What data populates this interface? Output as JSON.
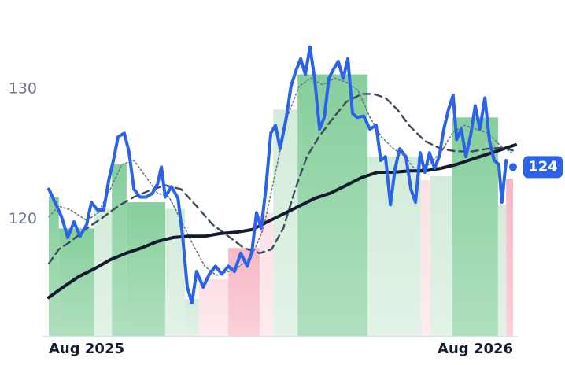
{
  "chart_data": {
    "type": "line",
    "xlim": [
      0,
      12.06
    ],
    "ylim": [
      111,
      136.8
    ],
    "xticks": [
      {
        "value": 0,
        "label": "Aug 2025"
      },
      {
        "value": 12,
        "label": "Aug 2026"
      }
    ],
    "yticks": [
      120,
      130
    ],
    "grid": false,
    "last_value": 124,
    "last_color": "#2a63e8",
    "segments": [
      {
        "x0": 0,
        "x1": 0.26,
        "value": 121.7,
        "color": "#86cf9c"
      },
      {
        "x0": 0.26,
        "x1": 1.18,
        "value": 119.3,
        "color": "#86cf9c"
      },
      {
        "x0": 1.18,
        "x1": 1.63,
        "value": 120.8,
        "color": "#d3ecda"
      },
      {
        "x0": 1.63,
        "x1": 2.01,
        "value": 124.2,
        "color": "#86cf9c"
      },
      {
        "x0": 2.01,
        "x1": 3.01,
        "value": 121.3,
        "color": "#86cf9c"
      },
      {
        "x0": 3.01,
        "x1": 3.52,
        "value": 120.8,
        "color": "#d3ecda"
      },
      {
        "x0": 3.52,
        "x1": 3.88,
        "value": 113.9,
        "color": "#d3ecda"
      },
      {
        "x0": 3.88,
        "x1": 4.64,
        "value": 115.4,
        "color": "#fde0e6"
      },
      {
        "x0": 4.64,
        "x1": 5.45,
        "value": 117.8,
        "color": "#f7b8c5"
      },
      {
        "x0": 5.45,
        "x1": 5.8,
        "value": 120.5,
        "color": "#fde0e6"
      },
      {
        "x0": 5.8,
        "x1": 6.43,
        "value": 128.4,
        "color": "#d3ecda"
      },
      {
        "x0": 6.43,
        "x1": 8.24,
        "value": 131.1,
        "color": "#86cf9c"
      },
      {
        "x0": 8.24,
        "x1": 9.62,
        "value": 124.8,
        "color": "#d3ecda"
      },
      {
        "x0": 9.62,
        "x1": 9.86,
        "value": 123.0,
        "color": "#fde0e6"
      },
      {
        "x0": 9.86,
        "x1": 10.43,
        "value": 123.3,
        "color": "#d3ecda"
      },
      {
        "x0": 10.43,
        "x1": 11.61,
        "value": 127.8,
        "color": "#86cf9c"
      },
      {
        "x0": 11.61,
        "x1": 11.82,
        "value": 121.1,
        "color": "#d3ecda"
      },
      {
        "x0": 11.82,
        "x1": 12.0,
        "value": 123.1,
        "color": "#f7b8c5"
      }
    ],
    "series": [
      {
        "color": "#6b7690",
        "dash": "2 3",
        "width": 1.6,
        "x": [
          0,
          0.26,
          0.57,
          0.98,
          1.28,
          1.59,
          1.89,
          2.2,
          2.5,
          2.81,
          3.11,
          3.42,
          3.72,
          4.03,
          4.33,
          4.64,
          4.94,
          5.25,
          5.55,
          5.86,
          6.16,
          6.47,
          6.77,
          7.08,
          7.38,
          7.69,
          7.99,
          8.3,
          8.6,
          8.91,
          9.21,
          9.52,
          9.82,
          10.13,
          10.43,
          10.74,
          11.04,
          11.35,
          11.65,
          11.96
        ],
        "values": [
          120.2,
          121.0,
          120.7,
          119.9,
          120.5,
          122.3,
          124.2,
          124.5,
          123.3,
          122.0,
          121.7,
          119.9,
          118.1,
          116.4,
          115.7,
          116.0,
          116.4,
          117.2,
          119.3,
          123.6,
          127.8,
          130.2,
          130.8,
          130.3,
          130.8,
          130.5,
          129.9,
          127.8,
          126.3,
          125.4,
          124.8,
          123.6,
          124.2,
          125.1,
          126.6,
          127.2,
          126.9,
          126.6,
          125.7,
          125.1
        ]
      },
      {
        "color": "#3e4a5e",
        "dash": "9 6",
        "width": 2.4,
        "x": [
          0,
          0.26,
          0.57,
          0.98,
          1.38,
          1.79,
          2.2,
          2.6,
          3.01,
          3.42,
          3.82,
          4.23,
          4.64,
          5.04,
          5.45,
          5.76,
          6.06,
          6.37,
          6.67,
          6.98,
          7.28,
          7.69,
          8.09,
          8.4,
          8.7,
          9.01,
          9.31,
          9.72,
          10.13,
          10.54,
          10.94,
          11.35,
          11.76,
          12.06
        ],
        "values": [
          116.6,
          117.7,
          118.3,
          119.3,
          120.1,
          121.0,
          121.7,
          122.2,
          122.6,
          122.3,
          121.0,
          119.6,
          118.7,
          117.8,
          117.4,
          117.7,
          119.3,
          122.3,
          124.8,
          126.3,
          127.5,
          129.0,
          129.6,
          129.6,
          129.3,
          128.4,
          127.2,
          126.0,
          125.4,
          125.2,
          125.2,
          125.4,
          125.5,
          125.2
        ]
      },
      {
        "color": "#151b2e",
        "dash": "",
        "width": 4,
        "x": [
          0,
          0.37,
          0.77,
          1.18,
          1.59,
          2.0,
          2.4,
          2.81,
          3.22,
          3.62,
          4.03,
          4.43,
          4.84,
          5.25,
          5.65,
          6.06,
          6.47,
          6.87,
          7.28,
          7.69,
          8.09,
          8.5,
          8.91,
          9.31,
          9.72,
          10.13,
          10.54,
          10.94,
          11.35,
          11.76,
          12.06
        ],
        "values": [
          114.0,
          114.8,
          115.6,
          116.2,
          116.9,
          117.4,
          117.8,
          118.3,
          118.6,
          118.7,
          118.7,
          118.9,
          119.0,
          119.2,
          119.8,
          120.4,
          121.0,
          121.6,
          122.0,
          122.6,
          123.2,
          123.6,
          123.6,
          123.7,
          123.7,
          123.9,
          124.2,
          124.6,
          125.0,
          125.4,
          125.7
        ]
      },
      {
        "color": "#2a63e8",
        "dash": "",
        "width": 4,
        "x": [
          0,
          0.16,
          0.33,
          0.49,
          0.65,
          0.81,
          0.98,
          1.1,
          1.26,
          1.42,
          1.55,
          1.67,
          1.79,
          1.95,
          2.07,
          2.2,
          2.36,
          2.52,
          2.68,
          2.81,
          2.91,
          3.01,
          3.17,
          3.34,
          3.46,
          3.58,
          3.7,
          3.82,
          3.99,
          4.15,
          4.31,
          4.47,
          4.64,
          4.8,
          4.96,
          5.13,
          5.25,
          5.37,
          5.49,
          5.61,
          5.74,
          5.86,
          5.98,
          6.14,
          6.26,
          6.39,
          6.51,
          6.63,
          6.75,
          6.87,
          7.0,
          7.12,
          7.24,
          7.36,
          7.48,
          7.61,
          7.73,
          7.85,
          7.97,
          8.14,
          8.3,
          8.46,
          8.58,
          8.7,
          8.83,
          8.95,
          9.07,
          9.23,
          9.36,
          9.48,
          9.6,
          9.72,
          9.84,
          9.97,
          10.09,
          10.21,
          10.33,
          10.45,
          10.54,
          10.66,
          10.78,
          10.9,
          11.02,
          11.14,
          11.27,
          11.39,
          11.51,
          11.63,
          11.71,
          11.82
        ],
        "values": [
          122.3,
          121.3,
          120.2,
          118.6,
          119.8,
          118.7,
          119.6,
          121.3,
          120.7,
          120.7,
          123.0,
          124.5,
          126.3,
          126.6,
          125.2,
          122.3,
          121.7,
          121.7,
          122.0,
          122.7,
          124.0,
          121.7,
          122.5,
          121.6,
          118.7,
          114.8,
          113.6,
          116.0,
          114.8,
          115.8,
          116.4,
          115.8,
          116.4,
          116.0,
          117.4,
          116.4,
          117.5,
          120.5,
          119.3,
          122.3,
          126.6,
          127.2,
          125.4,
          127.8,
          130.2,
          131.4,
          132.3,
          131.1,
          133.2,
          130.8,
          126.9,
          127.8,
          130.8,
          131.5,
          132.1,
          130.8,
          132.3,
          128.1,
          127.8,
          127.9,
          126.9,
          127.2,
          124.5,
          124.8,
          121.1,
          123.9,
          125.4,
          124.8,
          122.3,
          121.3,
          125.1,
          123.6,
          125.1,
          123.9,
          124.8,
          126.9,
          128.4,
          129.5,
          126.1,
          126.9,
          124.8,
          126.4,
          128.7,
          126.9,
          129.3,
          126.0,
          124.5,
          124.2,
          121.3,
          124.5
        ]
      }
    ]
  }
}
